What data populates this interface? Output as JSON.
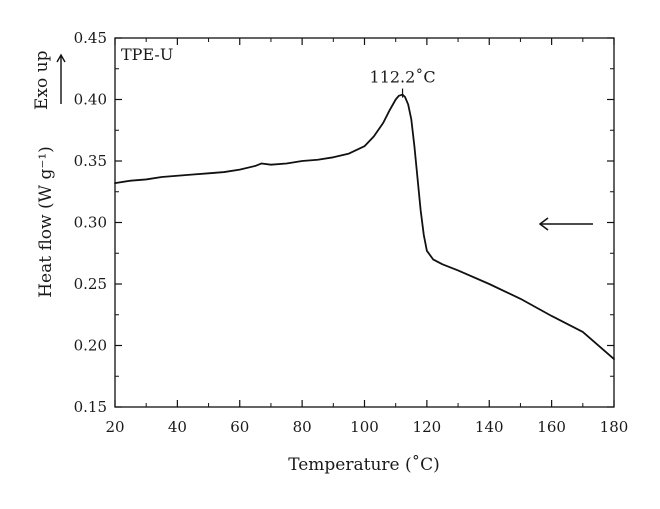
{
  "chart_data": {
    "type": "line",
    "title": "",
    "xlabel": "Temperature (˚C)",
    "ylabel": "Heat flow (W g⁻¹)",
    "xlim": [
      20,
      180
    ],
    "ylim": [
      0.15,
      0.45
    ],
    "xticks": [
      "20",
      "40",
      "60",
      "80",
      "100",
      "120",
      "140",
      "160",
      "180"
    ],
    "yticks": [
      "0.15",
      "0.20",
      "0.25",
      "0.30",
      "0.35",
      "0.40",
      "0.45"
    ],
    "grid": false,
    "series": [
      {
        "name": "TPE-U",
        "x": [
          20,
          25,
          30,
          35,
          40,
          45,
          50,
          55,
          60,
          65,
          67,
          70,
          75,
          80,
          85,
          90,
          95,
          100,
          103,
          106,
          108,
          110,
          111,
          112.2,
          113,
          114,
          115,
          116,
          117,
          118,
          119,
          120,
          122,
          125,
          130,
          140,
          150,
          160,
          170,
          180
        ],
        "y": [
          0.332,
          0.334,
          0.335,
          0.337,
          0.338,
          0.339,
          0.34,
          0.341,
          0.343,
          0.346,
          0.348,
          0.347,
          0.348,
          0.35,
          0.351,
          0.353,
          0.356,
          0.362,
          0.37,
          0.381,
          0.391,
          0.4,
          0.403,
          0.404,
          0.402,
          0.396,
          0.384,
          0.362,
          0.336,
          0.31,
          0.29,
          0.277,
          0.27,
          0.266,
          0.261,
          0.25,
          0.238,
          0.224,
          0.211,
          0.189
        ]
      }
    ],
    "annotations": {
      "sample_label": "TPE-U",
      "peak_label": "112.2˚C",
      "peak_x": 112.2,
      "peak_y": 0.404,
      "exo_label": "Exo up",
      "scan_direction": "cooling (right to left)"
    }
  }
}
